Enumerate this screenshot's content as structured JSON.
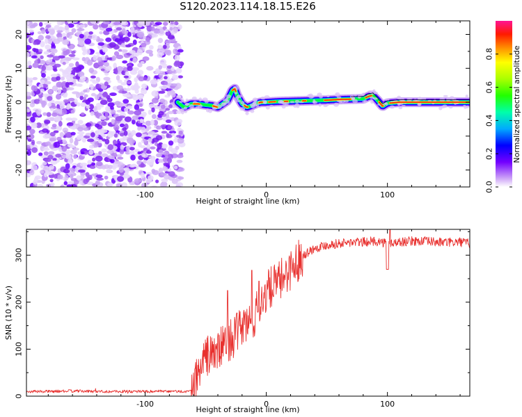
{
  "title": "S120.2023.114.18.15.E26",
  "chart_data": [
    {
      "type": "heatmap",
      "xlabel": "Height of straight line (km)",
      "ylabel": "Frequency (Hz)",
      "xlim": [
        -198,
        168
      ],
      "ylim": [
        -25,
        24
      ],
      "xticks": [
        -100,
        0,
        100
      ],
      "xtick_labels": [
        "-100",
        "0",
        "100"
      ],
      "yticks": [
        20,
        10,
        0,
        -10,
        -20
      ],
      "ytick_labels": [
        "20",
        "10",
        "0",
        "-10",
        "-20"
      ],
      "noise_region_x": [
        -198,
        -73
      ],
      "ridge": {
        "x": [
          -73,
          -68,
          -62,
          -56,
          -50,
          -45,
          -40,
          -36,
          -32,
          -28,
          -26,
          -24,
          -20,
          -16,
          -12,
          -8,
          -4,
          0,
          10,
          20,
          30,
          40,
          50,
          60,
          70,
          80,
          85,
          88,
          92,
          96,
          100,
          110,
          130,
          150,
          168
        ],
        "freq": [
          0,
          -1.5,
          -0.5,
          -0.5,
          -0.8,
          -1.0,
          -1.5,
          -0.5,
          0.5,
          3.5,
          4.0,
          2.0,
          -0.5,
          -1.5,
          -1.0,
          -0.3,
          0,
          0,
          0.2,
          0.3,
          0.4,
          0.5,
          0.6,
          0.8,
          0.9,
          1.0,
          1.8,
          2.0,
          0.5,
          -1.2,
          -0.3,
          0,
          0,
          0,
          0
        ]
      },
      "colorbar": {
        "label": "Normalized spectral amplitude",
        "range": [
          0.0,
          1.0
        ],
        "ticks": [
          0.0,
          0.2,
          0.4,
          0.6,
          0.8
        ],
        "tick_labels": [
          "0.0",
          "0.2",
          "0.4",
          "0.6",
          "0.8"
        ]
      }
    },
    {
      "type": "line",
      "xlabel": "Height of straight line (km)",
      "ylabel": "SNR (10 * v/v)",
      "xlim": [
        -198,
        168
      ],
      "ylim": [
        0,
        355
      ],
      "xticks": [
        -100,
        0,
        100
      ],
      "xtick_labels": [
        "-100",
        "0",
        "100"
      ],
      "yticks": [
        0,
        100,
        200,
        300
      ],
      "ytick_labels": [
        "0",
        "100",
        "200",
        "300"
      ],
      "line_color": "#e8302e",
      "series": [
        {
          "name": "SNR",
          "x": [
            -198,
            -180,
            -160,
            -140,
            -120,
            -100,
            -80,
            -62,
            -58,
            -54,
            -50,
            -45,
            -40,
            -35,
            -30,
            -25,
            -20,
            -15,
            -10,
            -5,
            0,
            5,
            10,
            15,
            20,
            25,
            30,
            40,
            50,
            60,
            70,
            80,
            90,
            95,
            100,
            110,
            120,
            130,
            140,
            150,
            160,
            168
          ],
          "y": [
            10,
            10,
            11,
            10,
            10,
            10,
            10,
            10,
            35,
            65,
            85,
            90,
            95,
            110,
            120,
            130,
            150,
            155,
            165,
            200,
            220,
            235,
            240,
            260,
            270,
            285,
            300,
            315,
            322,
            325,
            327,
            328,
            330,
            328,
            325,
            328,
            330,
            330,
            328,
            327,
            328,
            325
          ]
        }
      ],
      "spikes": [
        {
          "x": -32,
          "y": 225
        },
        {
          "x": -12,
          "y": 268
        },
        {
          "x": -6,
          "y": 245
        },
        {
          "x": 100,
          "y": 270
        },
        {
          "x": 102,
          "y": 355
        }
      ]
    }
  ],
  "colors": {
    "background": "#ffffff",
    "axes": "#000000",
    "snr_line": "#e8302e",
    "colormap": [
      "#f2f2ff",
      "#c9a5f5",
      "#6a00ff",
      "#0000ff",
      "#00c8ff",
      "#00ff40",
      "#a8ff00",
      "#ffff00",
      "#ff8000",
      "#ff0000",
      "#ff1493"
    ]
  }
}
